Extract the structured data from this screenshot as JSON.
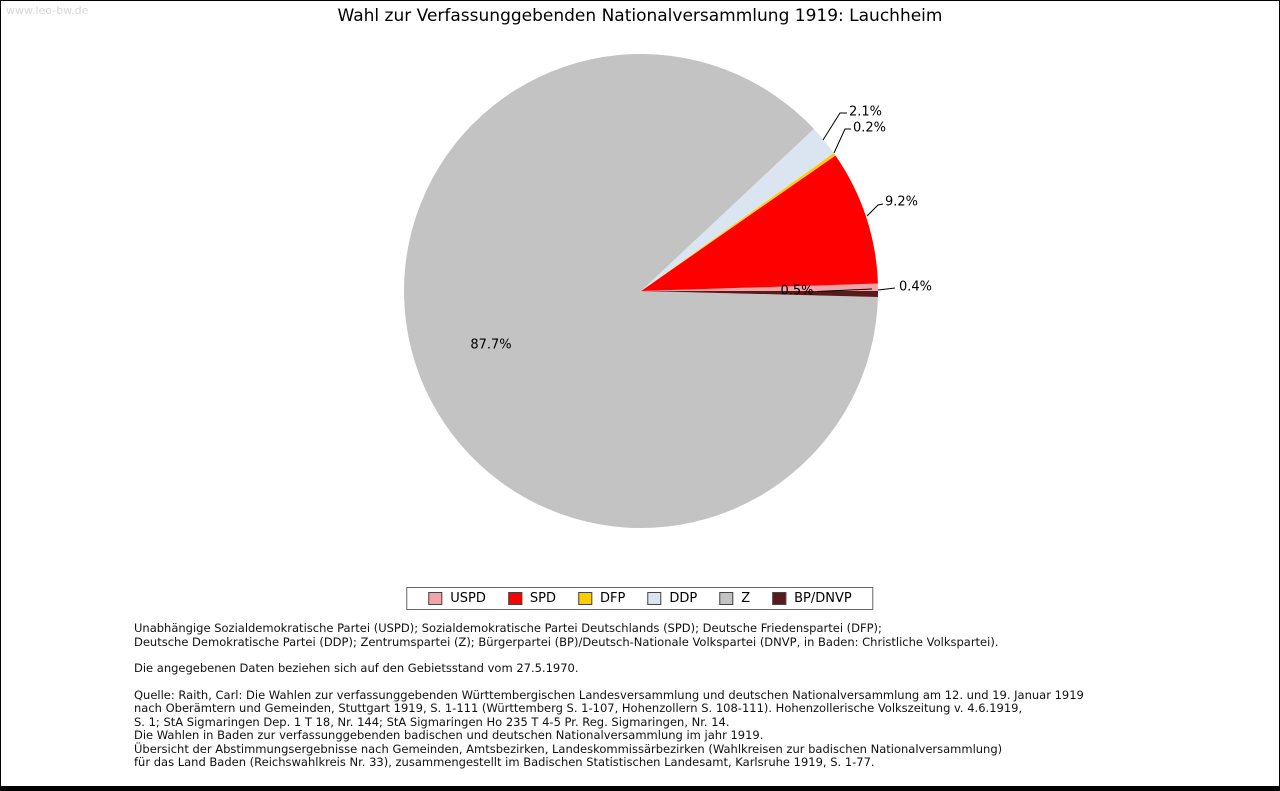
{
  "watermark": "www.leo-bw.de",
  "chart_data": {
    "type": "pie",
    "title": "Wahl zur Verfassunggebenden Nationalversammlung 1919: Lauchheim",
    "labels": [
      "USPD",
      "SPD",
      "DFP",
      "DDP",
      "Z",
      "BP/DNVP"
    ],
    "values": [
      0.5,
      9.2,
      0.2,
      2.1,
      87.7,
      0.4
    ],
    "colors": [
      "#f2a3a8",
      "#fe0000",
      "#ffcc00",
      "#dbe5f1",
      "#c3c3c3",
      "#5a191b"
    ],
    "unit": "%",
    "start_angle_deg": 0,
    "direction": "counterclockwise",
    "legend_position": "bottom",
    "legend_labels": [
      "USPD",
      "SPD",
      "DFP",
      "DDP",
      "Z",
      "BP/DNVP"
    ]
  },
  "notes": {
    "abbreviations": [
      "Unabhängige Sozialdemokratische Partei (USPD); Sozialdemokratische Partei Deutschlands (SPD); Deutsche Friedenspartei (DFP);",
      "Deutsche Demokratische Partei (DDP); Zentrumspartei (Z); Bürgerpartei (BP)/Deutsch-Nationale Volkspartei (DNVP, in Baden: Christliche Volkspartei)."
    ],
    "data_status": "Die angegebenen Daten beziehen sich auf den Gebietsstand vom 27.5.1970.",
    "source": [
      "Quelle: Raith, Carl: Die Wahlen zur verfassunggebenden Württembergischen Landesversammlung und deutschen Nationalversammlung am 12. und 19. Januar 1919",
      "nach Oberämtern und Gemeinden, Stuttgart 1919, S. 1-111 (Württemberg S. 1-107, Hohenzollern S. 108-111). Hohenzollerische Volkszeitung v. 4.6.1919,",
      "S. 1; StA Sigmaringen Dep. 1 T 18, Nr. 144; StA Sigmaringen Ho 235 T 4-5 Pr. Reg. Sigmaringen, Nr. 14.",
      "Die Wahlen in Baden zur verfassunggebenden badischen und deutschen Nationalversammlung im jahr 1919.",
      "Übersicht der Abstimmungsergebnisse nach Gemeinden, Amtsbezirken, Landeskommissärbezirken (Wahlkreisen zur badischen Nationalversammlung)",
      "für das Land Baden (Reichswahlkreis Nr. 33), zusammengestellt im Badischen Statistischen Landesamt, Karlsruhe 1919, S. 1-77."
    ]
  }
}
